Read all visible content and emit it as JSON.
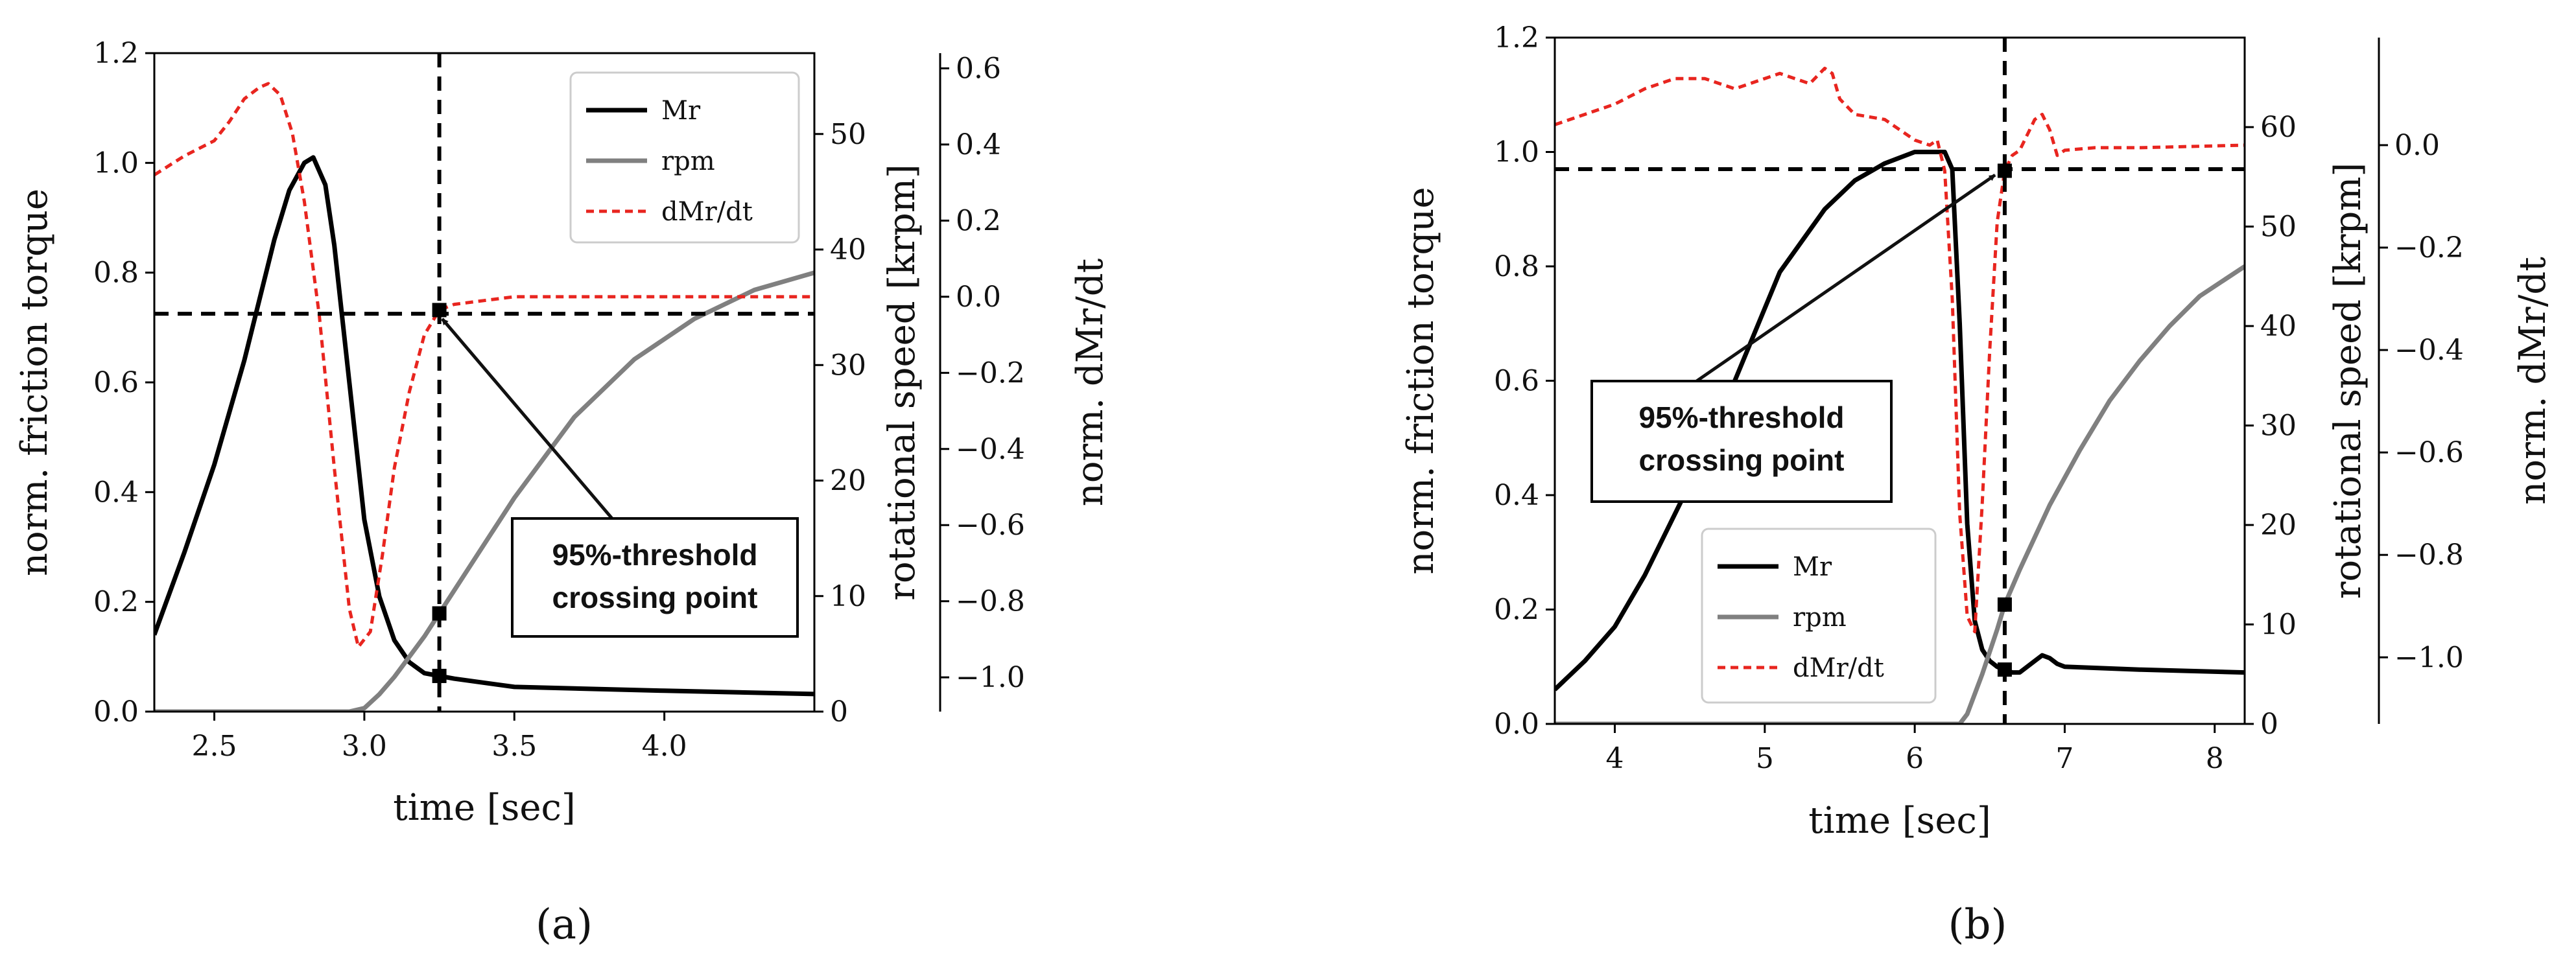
{
  "chart_data": [
    {
      "type": "line",
      "panel": "(a)",
      "panel_label": "(a)",
      "xlabel": "time [sec]",
      "ylabel": "norm. friction torque",
      "ylabel_right": "rotational speed [krpm]",
      "ylabel_right2": "norm. dMr/dt",
      "xlim": [
        2.3,
        4.5
      ],
      "ylim": [
        0,
        1.2
      ],
      "ylim_right": [
        0,
        57
      ],
      "ylim_right2": [
        -1.09,
        0.64
      ],
      "xticks": [
        2.5,
        3.0,
        3.5,
        4.0
      ],
      "xtick_labels": [
        "2.5",
        "3.0",
        "3.5",
        "4.0"
      ],
      "yticks": [
        0.0,
        0.2,
        0.4,
        0.6,
        0.8,
        1.0,
        1.2
      ],
      "ytick_labels": [
        "0.0",
        "0.2",
        "0.4",
        "0.6",
        "0.8",
        "1.0",
        "1.2"
      ],
      "yticks_right": [
        0,
        10,
        20,
        30,
        40,
        50
      ],
      "ytick_labels_right": [
        "0",
        "10",
        "20",
        "30",
        "40",
        "50"
      ],
      "yticks_right2": [
        0.6,
        0.4,
        0.2,
        0.0,
        -0.2,
        -0.4,
        -0.6,
        -0.8,
        -1.0
      ],
      "ytick_labels_right2": [
        "0.6",
        "0.4",
        "0.2",
        "0.0",
        "−0.2",
        "−0.4",
        "−0.6",
        "−0.8",
        "−1.0"
      ],
      "legend": [
        "Mr",
        "rpm",
        "dMr/dt"
      ],
      "legend_position": "top-right",
      "annotation": {
        "line1": "95%-threshold",
        "line2": "crossing point"
      },
      "threshold_x": 3.25,
      "threshold_y": 0.725,
      "markers": [
        {
          "series": "Mr",
          "x": 3.25,
          "y": 0.065
        },
        {
          "series": "rpm",
          "x": 3.25,
          "y": 8.5
        },
        {
          "series": "dMr/dt",
          "x": 3.25,
          "y": -0.035
        }
      ],
      "series": [
        {
          "name": "Mr",
          "axis": "left",
          "color": "#000000",
          "dash": "",
          "x": [
            2.3,
            2.4,
            2.5,
            2.6,
            2.7,
            2.75,
            2.8,
            2.83,
            2.87,
            2.9,
            2.95,
            3.0,
            3.05,
            3.1,
            3.15,
            3.2,
            3.25,
            3.3,
            3.5,
            4.0,
            4.5
          ],
          "y": [
            0.14,
            0.29,
            0.45,
            0.64,
            0.86,
            0.95,
            1.0,
            1.01,
            0.96,
            0.85,
            0.6,
            0.35,
            0.21,
            0.13,
            0.09,
            0.07,
            0.065,
            0.06,
            0.045,
            0.038,
            0.032
          ]
        },
        {
          "name": "rpm",
          "axis": "right",
          "color": "#808080",
          "dash": "",
          "x": [
            2.3,
            2.95,
            3.0,
            3.05,
            3.1,
            3.2,
            3.3,
            3.5,
            3.7,
            3.9,
            4.1,
            4.3,
            4.5
          ],
          "y": [
            0,
            0,
            0.3,
            1.5,
            3,
            6.5,
            10.5,
            18.5,
            25.5,
            30.5,
            34,
            36.5,
            38
          ]
        },
        {
          "name": "dMr/dt",
          "axis": "right2",
          "color": "#e8251f",
          "dash": "12,8",
          "x": [
            2.3,
            2.4,
            2.5,
            2.55,
            2.6,
            2.65,
            2.68,
            2.72,
            2.76,
            2.8,
            2.85,
            2.9,
            2.95,
            2.98,
            3.02,
            3.06,
            3.1,
            3.15,
            3.2,
            3.25,
            3.3,
            3.4,
            3.5,
            4.0,
            4.5
          ],
          "y": [
            0.32,
            0.37,
            0.41,
            0.46,
            0.52,
            0.55,
            0.56,
            0.53,
            0.43,
            0.25,
            -0.05,
            -0.45,
            -0.82,
            -0.92,
            -0.88,
            -0.68,
            -0.45,
            -0.25,
            -0.1,
            -0.035,
            -0.02,
            -0.01,
            0.0,
            0.0,
            0.0
          ]
        }
      ]
    },
    {
      "type": "line",
      "panel": "(b)",
      "panel_label": "(b)",
      "xlabel": "time [sec]",
      "ylabel": "norm. friction torque",
      "ylabel_right": "rotational speed [krpm]",
      "ylabel_right2": "norm. dMr/dt",
      "xlim": [
        3.6,
        8.2
      ],
      "ylim": [
        0,
        1.2
      ],
      "ylim_right": [
        0,
        69
      ],
      "ylim_right2": [
        -1.13,
        0.21
      ],
      "xticks": [
        4,
        5,
        6,
        7,
        8
      ],
      "xtick_labels": [
        "4",
        "5",
        "6",
        "7",
        "8"
      ],
      "yticks": [
        0.0,
        0.2,
        0.4,
        0.6,
        0.8,
        1.0,
        1.2
      ],
      "ytick_labels": [
        "0.0",
        "0.2",
        "0.4",
        "0.6",
        "0.8",
        "1.0",
        "1.2"
      ],
      "yticks_right": [
        0,
        10,
        20,
        30,
        40,
        50,
        60
      ],
      "ytick_labels_right": [
        "0",
        "10",
        "20",
        "30",
        "40",
        "50",
        "60"
      ],
      "yticks_right2": [
        0.0,
        -0.2,
        -0.4,
        -0.6,
        -0.8,
        -1.0
      ],
      "ytick_labels_right2": [
        "0.0",
        "−0.2",
        "−0.4",
        "−0.6",
        "−0.8",
        "−1.0"
      ],
      "legend": [
        "Mr",
        "rpm",
        "dMr/dt"
      ],
      "legend_position": "bottom-center",
      "annotation": {
        "line1": "95%-threshold",
        "line2": "crossing point"
      },
      "threshold_x": 6.6,
      "threshold_y": 0.97,
      "markers": [
        {
          "series": "Mr",
          "x": 6.6,
          "y": 0.095
        },
        {
          "series": "rpm",
          "x": 6.6,
          "y": 12
        },
        {
          "series": "dMr/dt",
          "x": 6.6,
          "y": -0.05
        }
      ],
      "series": [
        {
          "name": "Mr",
          "axis": "left",
          "color": "#000000",
          "dash": "",
          "x": [
            3.6,
            3.8,
            4.0,
            4.2,
            4.5,
            4.8,
            5.1,
            5.4,
            5.6,
            5.8,
            6.0,
            6.1,
            6.2,
            6.25,
            6.3,
            6.35,
            6.4,
            6.45,
            6.5,
            6.55,
            6.6,
            6.65,
            6.7,
            6.8,
            6.85,
            6.9,
            6.95,
            7.0,
            7.5,
            8.2
          ],
          "y": [
            0.06,
            0.11,
            0.17,
            0.26,
            0.42,
            0.6,
            0.79,
            0.9,
            0.95,
            0.98,
            1.0,
            1.0,
            1.0,
            0.97,
            0.7,
            0.35,
            0.18,
            0.13,
            0.11,
            0.1,
            0.095,
            0.09,
            0.09,
            0.11,
            0.12,
            0.115,
            0.105,
            0.1,
            0.095,
            0.09
          ]
        },
        {
          "name": "rpm",
          "axis": "right",
          "color": "#808080",
          "dash": "",
          "x": [
            3.6,
            6.3,
            6.35,
            6.45,
            6.55,
            6.6,
            6.7,
            6.9,
            7.1,
            7.3,
            7.5,
            7.7,
            7.9,
            8.2
          ],
          "y": [
            0,
            0,
            1,
            5,
            9.5,
            12,
            15.5,
            22,
            27.5,
            32.5,
            36.5,
            40,
            43,
            46
          ]
        },
        {
          "name": "dMr/dt",
          "axis": "right2",
          "color": "#e8251f",
          "dash": "12,8",
          "x": [
            3.6,
            3.8,
            4.0,
            4.2,
            4.4,
            4.6,
            4.7,
            4.8,
            5.0,
            5.1,
            5.2,
            5.3,
            5.4,
            5.45,
            5.5,
            5.6,
            5.8,
            5.9,
            6.0,
            6.1,
            6.15,
            6.2,
            6.25,
            6.3,
            6.35,
            6.4,
            6.45,
            6.5,
            6.55,
            6.6,
            6.65,
            6.7,
            6.75,
            6.8,
            6.85,
            6.9,
            6.95,
            7.0,
            7.2,
            7.5,
            8.2
          ],
          "y": [
            0.04,
            0.06,
            0.08,
            0.11,
            0.13,
            0.13,
            0.12,
            0.11,
            0.13,
            0.14,
            0.13,
            0.12,
            0.15,
            0.14,
            0.09,
            0.06,
            0.05,
            0.03,
            0.01,
            0.0,
            0.01,
            -0.05,
            -0.3,
            -0.72,
            -0.92,
            -0.95,
            -0.7,
            -0.4,
            -0.15,
            -0.05,
            -0.02,
            -0.01,
            0.02,
            0.05,
            0.06,
            0.03,
            -0.02,
            -0.01,
            -0.005,
            -0.005,
            0.0
          ]
        }
      ]
    }
  ]
}
